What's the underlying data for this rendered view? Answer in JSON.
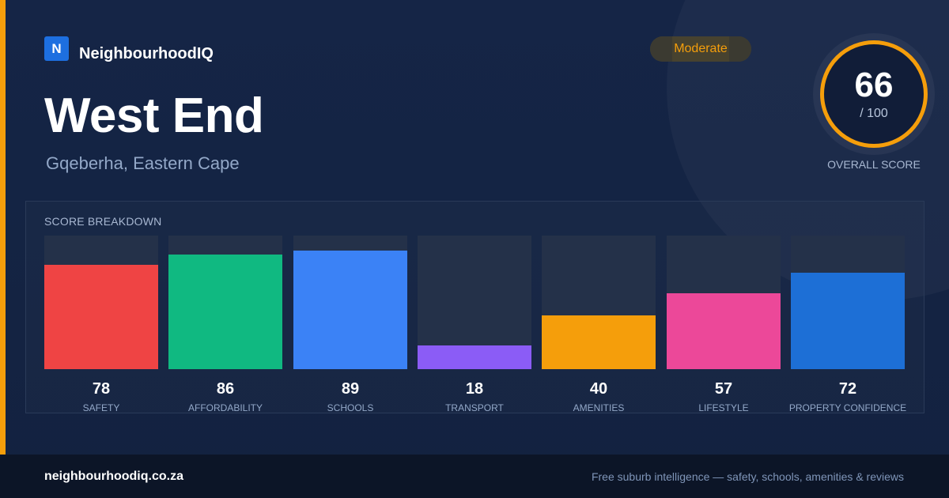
{
  "brand": {
    "logo_letter": "N",
    "name": "NeighbourhoodIQ"
  },
  "suburb": {
    "name": "West End",
    "location": "Gqeberha, Eastern Cape"
  },
  "rating": {
    "label": "Moderate",
    "color": "#f59e0b"
  },
  "overall": {
    "score": "66",
    "max_label": "/ 100",
    "label": "OVERALL SCORE"
  },
  "breakdown": {
    "title": "SCORE BREAKDOWN"
  },
  "chart_data": {
    "type": "bar",
    "categories": [
      "SAFETY",
      "AFFORDABILITY",
      "SCHOOLS",
      "TRANSPORT",
      "AMENITIES",
      "LIFESTYLE",
      "PROPERTY CONFIDENCE"
    ],
    "values": [
      78,
      86,
      89,
      18,
      40,
      57,
      72
    ],
    "colors": [
      "#ef4444",
      "#10b981",
      "#3b82f6",
      "#8b5cf6",
      "#f59e0b",
      "#ec4899",
      "#1d6fd6"
    ],
    "ylim": [
      0,
      100
    ],
    "title": "SCORE BREAKDOWN",
    "xlabel": "",
    "ylabel": ""
  },
  "footer": {
    "url": "neighbourhoodiq.co.za",
    "tagline": "Free suburb intelligence — safety, schools, amenities & reviews"
  }
}
